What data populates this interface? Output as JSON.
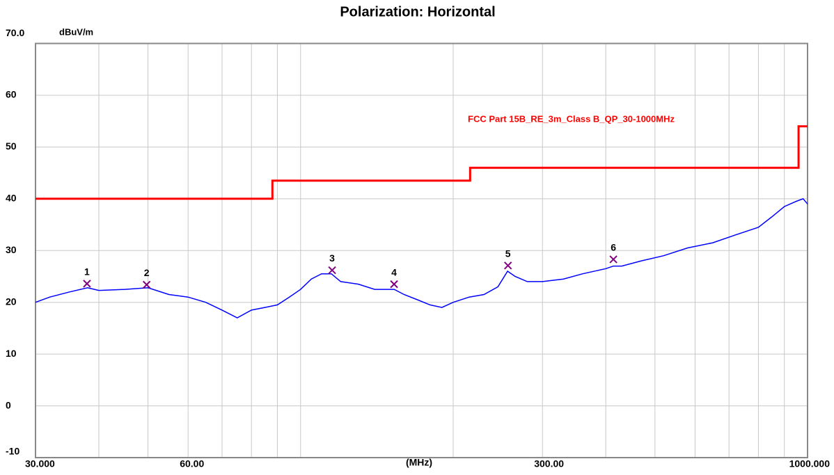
{
  "chart_data": {
    "type": "line",
    "title": "Polarization: Horizontal",
    "ylabel": "dBuV/m",
    "xlabel": "(MHz)",
    "xscale": "log",
    "xlim": [
      30,
      1000
    ],
    "ylim": [
      -10,
      70
    ],
    "xticks": [
      {
        "value": 30,
        "label": "30.000"
      },
      {
        "value": 60,
        "label": "60.00"
      },
      {
        "value": 300,
        "label": "300.00"
      },
      {
        "value": 1000,
        "label": "1000.000"
      }
    ],
    "xgrid": [
      40,
      50,
      60,
      70,
      80,
      90,
      100,
      200,
      300,
      400,
      500,
      600,
      700,
      800,
      900
    ],
    "yticks": [
      {
        "value": 70,
        "label": "70.0"
      },
      60,
      50,
      40,
      30,
      20,
      10,
      0,
      -10
    ],
    "grid": true,
    "series": [
      {
        "name": "FCC Part 15B_RE_3m_Class B_QP_30-1000MHz",
        "color": "#ff0000",
        "x": [
          30,
          88,
          88,
          216,
          216,
          960,
          960,
          1000
        ],
        "values": [
          40,
          40,
          43.5,
          43.5,
          46,
          46,
          54,
          54
        ]
      },
      {
        "color": "#0000ff",
        "x": [
          30,
          32,
          35,
          38,
          40,
          45,
          50,
          55,
          60,
          65,
          70,
          75,
          80,
          85,
          90,
          95,
          100,
          105,
          110,
          115,
          120,
          130,
          140,
          153,
          160,
          170,
          180,
          190,
          200,
          215,
          230,
          245,
          256,
          265,
          280,
          300,
          330,
          360,
          400,
          414,
          430,
          470,
          520,
          580,
          650,
          720,
          800,
          850,
          900,
          950,
          980,
          1000
        ],
        "values": [
          20,
          21,
          22,
          22.8,
          22.3,
          22.5,
          22.8,
          21.5,
          21,
          20,
          18.5,
          17,
          18.5,
          19,
          19.5,
          21,
          22.5,
          24.5,
          25.5,
          25.5,
          24,
          23.5,
          22.5,
          22.5,
          21.5,
          20.5,
          19.5,
          19,
          20,
          21,
          21.5,
          23,
          26,
          25,
          24,
          24,
          24.5,
          25.5,
          26.5,
          27,
          27,
          28,
          29,
          30.5,
          31.5,
          33,
          34.5,
          36.5,
          38.5,
          39.5,
          40,
          39
        ]
      }
    ],
    "markers": {
      "labels": [
        "1",
        "2",
        "3",
        "4",
        "5",
        "6"
      ],
      "x": [
        37.9,
        49.7,
        115.4,
        152.9,
        256.5,
        414
      ],
      "values": [
        23.6,
        23.4,
        26.2,
        23.5,
        27.1,
        28.3
      ],
      "color": "#800080"
    }
  }
}
